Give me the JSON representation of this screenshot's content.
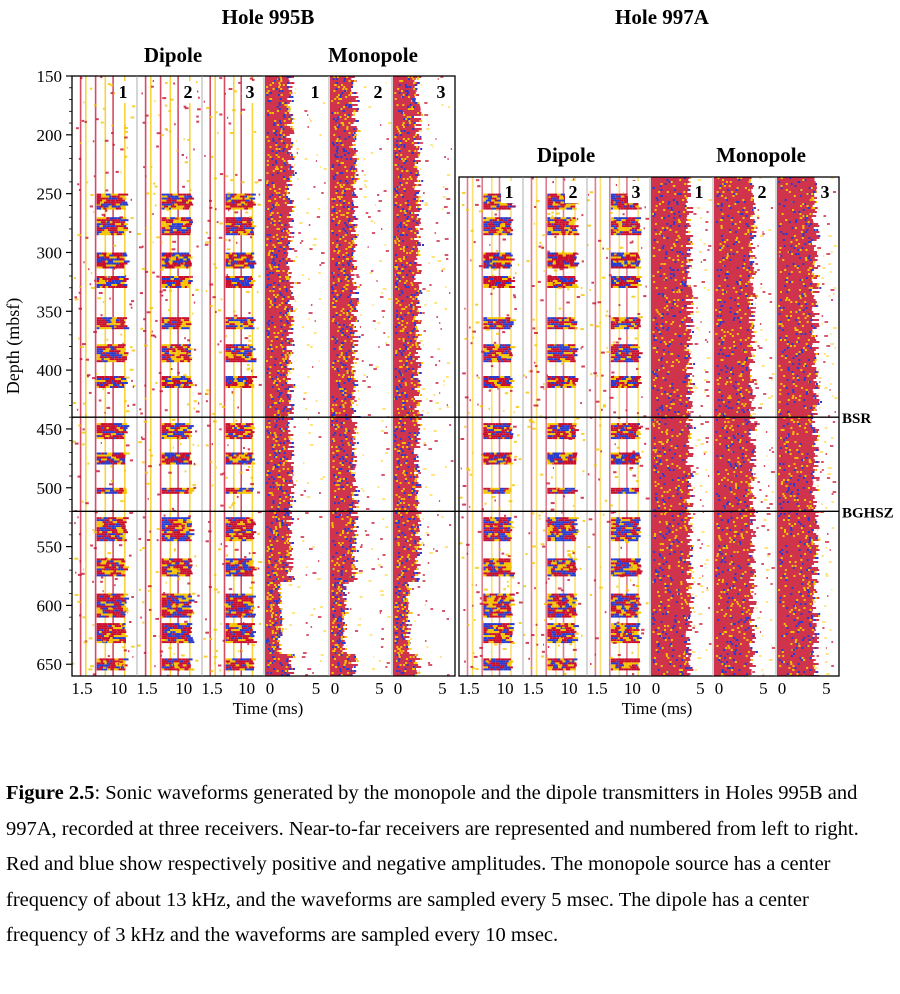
{
  "holes": [
    {
      "name": "Hole 995B",
      "dipole_label": "Dipole",
      "monopole_label": "Monopole",
      "receivers": [
        "1",
        "2",
        "3"
      ],
      "depth_range": [
        150,
        660
      ],
      "depth_ticks": [
        "150",
        "200",
        "250",
        "300",
        "350",
        "400",
        "450",
        "500",
        "550",
        "600",
        "650"
      ],
      "dipole_time_ticks": [
        "1.5",
        "10"
      ],
      "monopole_time_ticks": [
        "0",
        "5"
      ],
      "time_label": "Time (ms)",
      "depth_label": "Depth (mbsf)"
    },
    {
      "name": "Hole 997A",
      "dipole_label": "Dipole",
      "monopole_label": "Monopole",
      "receivers": [
        "1",
        "2",
        "3"
      ],
      "dipole_time_ticks": [
        "1.5",
        "10"
      ],
      "monopole_time_ticks": [
        "0",
        "5"
      ],
      "time_label": "Time (ms)"
    }
  ],
  "horizons": [
    {
      "label": "BSR",
      "depth": 440
    },
    {
      "label": "BGHSZ",
      "depth": 520
    }
  ],
  "colors": {
    "positive": "#c8102e",
    "negative": "#2a3ccf",
    "mid": "#f5c400",
    "light": "#ffd84a"
  },
  "caption": {
    "label": "Figure 2.5",
    "text": ": Sonic waveforms generated by the monopole and the dipole transmitters in Holes 995B and 997A, recorded at three receivers. Near-to-far receivers are represented and numbered from left to right. Red and blue show respectively positive and negative amplitudes. The monopole source has a center frequency of about 13 kHz, and the waveforms are sampled every 5 msec. The dipole has a center frequency of 3 kHz and the waveforms are sampled every 10 msec."
  }
}
